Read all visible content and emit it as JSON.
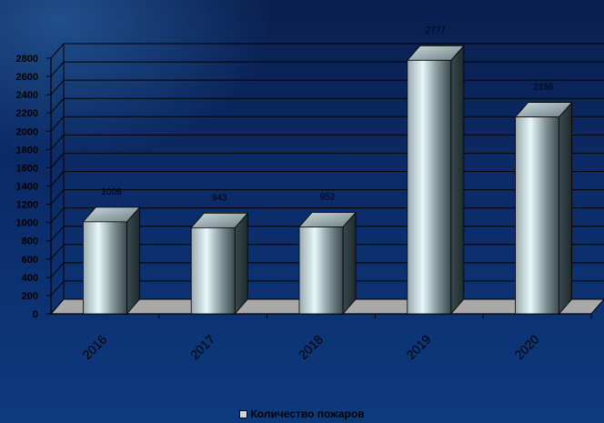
{
  "chart_data": {
    "type": "bar",
    "title": "",
    "xlabel": "",
    "ylabel": "",
    "categories": [
      "2016",
      "2017",
      "2018",
      "2019",
      "2020"
    ],
    "series": [
      {
        "name": "Количество пожаров",
        "values": [
          1008,
          943,
          952,
          2777,
          2156
        ]
      }
    ],
    "data_labels": [
      "1008",
      "943",
      "952",
      "2777",
      "2156"
    ],
    "ylim": [
      0,
      2800
    ],
    "yticks": [
      0,
      200,
      400,
      600,
      800,
      1000,
      1200,
      1400,
      1600,
      1800,
      2000,
      2200,
      2400,
      2600,
      2800
    ],
    "grid": true,
    "legend_position": "bottom",
    "bar_style": "3d-cylinder-box",
    "colors": {
      "bar_light": "#dff6f8",
      "bar_dark": "#3a4a4f",
      "floor": "#a9a9a9",
      "axis": "#000000",
      "background_top": "#0a1f4f",
      "background_bottom": "#0d3a7e"
    }
  },
  "legend": {
    "label": "Количество пожаров"
  }
}
